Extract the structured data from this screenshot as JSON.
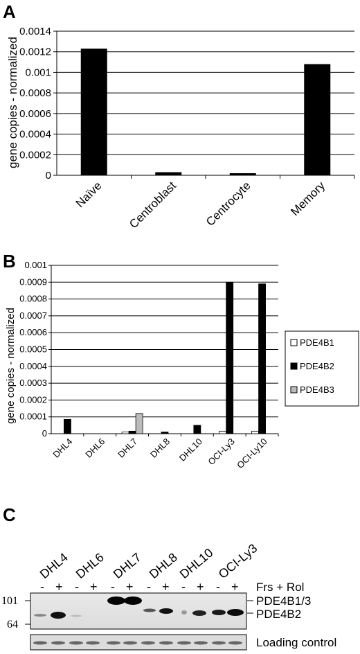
{
  "chart_data": [
    {
      "type": "bar",
      "panel": "A",
      "categories": [
        "Naïve",
        "Centroblast",
        "Centrocyte",
        "Memory"
      ],
      "values": [
        0.00123,
        3e-05,
        2e-05,
        0.00108
      ],
      "ylabel": "gene copies - normalized",
      "ylim": [
        0,
        0.0014
      ],
      "yticks": [
        "0",
        "0.0002",
        "0.0004",
        "0.0006",
        "0.0008",
        "0.001",
        "0.0012",
        "0.0014"
      ],
      "grid": true,
      "color": "#000000"
    },
    {
      "type": "bar",
      "panel": "B",
      "categories": [
        "DHL4",
        "DHL6",
        "DHL7",
        "DHL8",
        "DHL10",
        "OCI-Ly3",
        "OCI-Ly10"
      ],
      "series": [
        {
          "name": "PDE4B1",
          "color": "#ffffff",
          "values": [
            0,
            0,
            1e-05,
            0,
            0,
            1.5e-05,
            1.5e-05
          ]
        },
        {
          "name": "PDE4B2",
          "color": "#000000",
          "values": [
            8.5e-05,
            0,
            1.5e-05,
            1e-05,
            5e-05,
            0.0009,
            0.00089
          ]
        },
        {
          "name": "PDE4B3",
          "color": "#bbbbbb",
          "values": [
            0,
            0,
            0.00012,
            0,
            0,
            0,
            0
          ]
        }
      ],
      "ylabel": "gene copies - normalized",
      "ylim": [
        0,
        0.001
      ],
      "yticks": [
        "0",
        "0.0001",
        "0.0002",
        "0.0003",
        "0.0004",
        "0.0005",
        "0.0006",
        "0.0007",
        "0.0008",
        "0.0009",
        "0.001"
      ],
      "grid": true,
      "legend": "right"
    }
  ],
  "blot": {
    "panel": "C",
    "lanes": [
      "DHL4",
      "DHL6",
      "DHL7",
      "DHL8",
      "DHL10",
      "OCI-Ly3"
    ],
    "treatment_minus": "-",
    "treatment_plus": "+",
    "treatment_label": "Frs + Rol",
    "mw_markers": [
      "101",
      "64"
    ],
    "band_labels": [
      "PDE4B1/3",
      "PDE4B2"
    ],
    "loading_label": "Loading control"
  }
}
